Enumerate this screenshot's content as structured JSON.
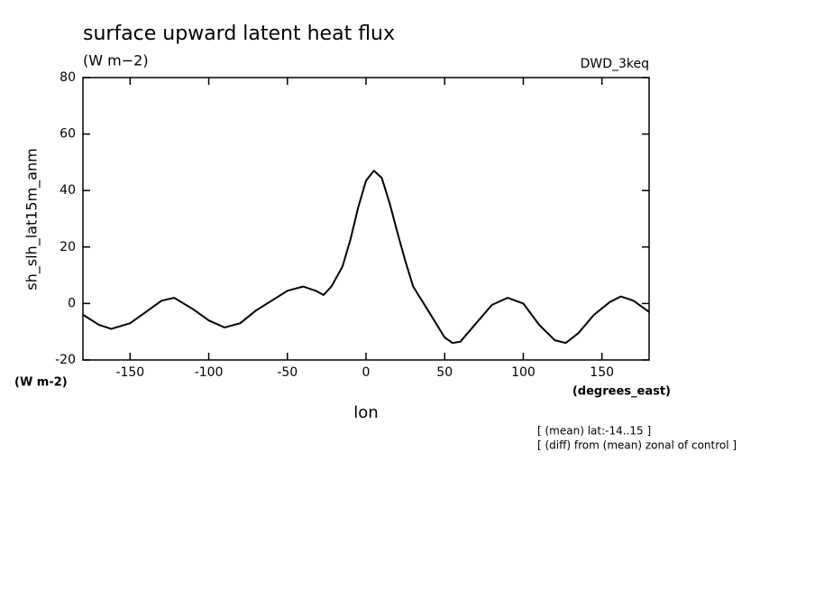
{
  "chart_data": {
    "type": "line",
    "title": "surface upward latent heat flux",
    "subtitle": "(W m−2)",
    "source": "DWD_3keq",
    "y_label": "sh_slh_lat15m_anm",
    "y_unit": "(W m-2)",
    "x_label": "lon",
    "x_unit": "(degrees_east)",
    "notes": [
      "[ (mean) lat:-14..15 ]",
      "[ (diff) from (mean) zonal of control ]"
    ],
    "color": "#000000",
    "x": [
      -180,
      -170,
      -162,
      -150,
      -140,
      -130,
      -122,
      -110,
      -100,
      -90,
      -80,
      -70,
      -60,
      -50,
      -40,
      -32,
      -27,
      -22,
      -15,
      -10,
      -5,
      0,
      5,
      10,
      15,
      20,
      25,
      30,
      40,
      50,
      55,
      60,
      70,
      80,
      90,
      100,
      110,
      120,
      127,
      135,
      145,
      155,
      162,
      170,
      180
    ],
    "values": [
      -4,
      -7.5,
      -9,
      -7,
      -3,
      1,
      2,
      -2,
      -6,
      -8.5,
      -7,
      -2.5,
      1,
      4.5,
      6,
      4.5,
      3,
      6,
      13,
      22.5,
      34,
      43.5,
      47,
      44.5,
      35.5,
      25,
      15,
      6,
      -3,
      -12,
      -14,
      -13.5,
      -7,
      -0.5,
      2,
      0,
      -7.5,
      -13,
      -14,
      -10.5,
      -4,
      0.5,
      2.5,
      1,
      -3
    ],
    "xlim": [
      -180,
      180
    ],
    "ylim": [
      -20,
      80
    ],
    "xticks": [
      -150,
      -100,
      -50,
      0,
      50,
      100,
      150
    ],
    "yticks": [
      -20,
      0,
      20,
      40,
      60,
      80
    ]
  }
}
